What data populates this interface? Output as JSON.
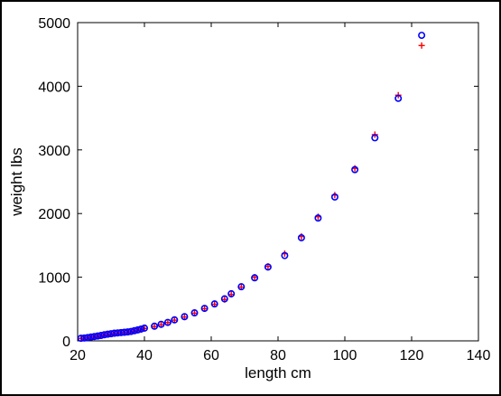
{
  "chart_data": {
    "type": "scatter",
    "title": "",
    "xlabel": "length cm",
    "ylabel": "weight lbs",
    "xlim": [
      20,
      140
    ],
    "ylim": [
      0,
      5000
    ],
    "xticks": [
      20,
      40,
      60,
      80,
      100,
      120,
      140
    ],
    "yticks": [
      0,
      1000,
      2000,
      3000,
      4000,
      5000
    ],
    "grid": false,
    "legend": "none",
    "series": [
      {
        "marker": "circle",
        "color": "#0000ff",
        "points": [
          [
            21,
            40
          ],
          [
            22,
            45
          ],
          [
            23,
            52
          ],
          [
            24,
            60
          ],
          [
            25,
            68
          ],
          [
            26,
            76
          ],
          [
            27,
            85
          ],
          [
            28,
            95
          ],
          [
            29,
            104
          ],
          [
            30,
            112
          ],
          [
            31,
            120
          ],
          [
            32,
            125
          ],
          [
            33,
            130
          ],
          [
            34,
            135
          ],
          [
            35,
            140
          ],
          [
            36,
            148
          ],
          [
            37,
            160
          ],
          [
            38,
            172
          ],
          [
            39,
            185
          ],
          [
            40,
            200
          ],
          [
            43,
            230
          ],
          [
            45,
            260
          ],
          [
            47,
            290
          ],
          [
            49,
            330
          ],
          [
            52,
            380
          ],
          [
            55,
            440
          ],
          [
            58,
            510
          ],
          [
            61,
            580
          ],
          [
            64,
            660
          ],
          [
            66,
            740
          ],
          [
            69,
            850
          ],
          [
            73,
            990
          ],
          [
            77,
            1160
          ],
          [
            82,
            1340
          ],
          [
            87,
            1620
          ],
          [
            92,
            1930
          ],
          [
            97,
            2260
          ],
          [
            103,
            2690
          ],
          [
            109,
            3190
          ],
          [
            116,
            3810
          ],
          [
            123,
            4800
          ]
        ]
      },
      {
        "marker": "plus",
        "color": "#ff0000",
        "points": [
          [
            21,
            38
          ],
          [
            22,
            44
          ],
          [
            23,
            50
          ],
          [
            24,
            58
          ],
          [
            25,
            66
          ],
          [
            26,
            74
          ],
          [
            27,
            82
          ],
          [
            28,
            92
          ],
          [
            29,
            100
          ],
          [
            30,
            108
          ],
          [
            31,
            116
          ],
          [
            32,
            124
          ],
          [
            33,
            130
          ],
          [
            34,
            134
          ],
          [
            35,
            138
          ],
          [
            36,
            145
          ],
          [
            37,
            155
          ],
          [
            38,
            168
          ],
          [
            39,
            180
          ],
          [
            40,
            195
          ],
          [
            43,
            225
          ],
          [
            45,
            255
          ],
          [
            47,
            288
          ],
          [
            49,
            325
          ],
          [
            52,
            375
          ],
          [
            55,
            435
          ],
          [
            58,
            505
          ],
          [
            61,
            575
          ],
          [
            64,
            650
          ],
          [
            66,
            730
          ],
          [
            69,
            845
          ],
          [
            73,
            1000
          ],
          [
            77,
            1170
          ],
          [
            82,
            1370
          ],
          [
            87,
            1640
          ],
          [
            92,
            1950
          ],
          [
            97,
            2290
          ],
          [
            103,
            2710
          ],
          [
            109,
            3240
          ],
          [
            116,
            3860
          ],
          [
            123,
            4640
          ]
        ]
      }
    ]
  }
}
